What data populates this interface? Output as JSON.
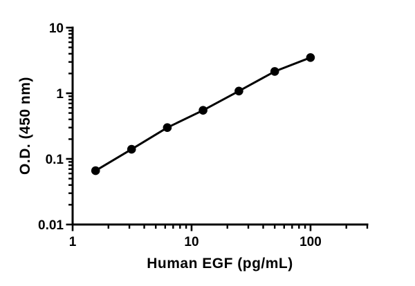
{
  "figure": {
    "background": "#ffffff",
    "foreground": "#000000"
  },
  "chart_data": {
    "type": "line",
    "title": "",
    "xlabel": "Human EGF (pg/mL)",
    "ylabel": "O.D. (450 nm)",
    "xscale": "log",
    "yscale": "log",
    "xlim": [
      1,
      300
    ],
    "ylim": [
      0.01,
      10
    ],
    "grid": false,
    "legend": null,
    "marker": "filled-circle",
    "line_color": "#000000",
    "marker_color": "#000000",
    "x": [
      1.56,
      3.13,
      6.25,
      12.5,
      25,
      50,
      100
    ],
    "y": [
      0.066,
      0.14,
      0.3,
      0.55,
      1.08,
      2.15,
      3.5
    ],
    "x_ticks": [
      {
        "value": 1,
        "label": "1"
      },
      {
        "value": 10,
        "label": "10"
      },
      {
        "value": 100,
        "label": "100"
      }
    ],
    "y_ticks": [
      {
        "value": 0.01,
        "label": "0.01"
      },
      {
        "value": 0.1,
        "label": "0.1"
      },
      {
        "value": 1,
        "label": "1"
      },
      {
        "value": 10,
        "label": "10"
      }
    ],
    "minor_log_ticks": true
  }
}
